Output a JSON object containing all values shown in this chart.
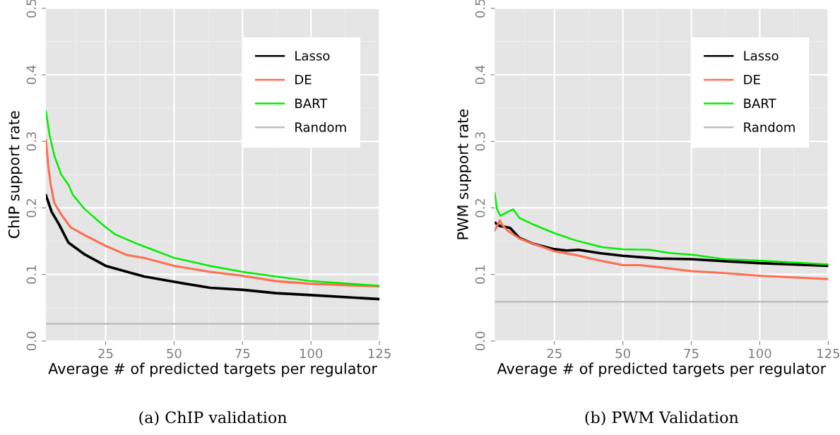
{
  "chart_data": [
    {
      "type": "line",
      "title": "(a) ChIP validation",
      "xlabel": "Average # of predicted targets per regulator",
      "ylabel": "ChIP support rate",
      "xlim": [
        3.2,
        125
      ],
      "xticks": [
        25,
        50,
        75,
        100,
        125
      ],
      "ylim": [
        0,
        0.5
      ],
      "yticks": [
        {
          "value": 0,
          "label": "0.0"
        },
        {
          "value": 0.1,
          "label": "0.1"
        },
        {
          "value": 0.2,
          "label": "0.2"
        },
        {
          "value": 0.3,
          "label": "0.3"
        },
        {
          "value": 0.4,
          "label": "0.4"
        },
        {
          "value": 0.5,
          "label": "0.5"
        }
      ],
      "grid": true,
      "legend": "top right",
      "line_style": "solid",
      "series": [
        {
          "name": "Lasso",
          "color": "#000000",
          "x": [
            3.2,
            5.3,
            7.9,
            11.4,
            17.4,
            25,
            32.9,
            39,
            50,
            63.1,
            75,
            87.2,
            100,
            125
          ],
          "values": [
            0.219,
            0.194,
            0.176,
            0.148,
            0.13,
            0.113,
            0.104,
            0.097,
            0.089,
            0.08,
            0.077,
            0.072,
            0.069,
            0.063
          ]
        },
        {
          "name": "DE",
          "color": "#ff6e50",
          "x": [
            3.2,
            4.1,
            4.9,
            6.2,
            8.8,
            12.2,
            17.4,
            25,
            32.9,
            39,
            50,
            63.1,
            75,
            87.2,
            100,
            125
          ],
          "values": [
            0.302,
            0.261,
            0.236,
            0.208,
            0.19,
            0.171,
            0.159,
            0.143,
            0.129,
            0.125,
            0.113,
            0.104,
            0.098,
            0.09,
            0.086,
            0.082
          ]
        },
        {
          "name": "BART",
          "color": "#00ee00",
          "x": [
            3.2,
            4.5,
            6.2,
            8.8,
            11.4,
            13.1,
            17.4,
            25,
            28.6,
            37.2,
            50,
            63.1,
            75,
            87.2,
            100,
            125
          ],
          "values": [
            0.345,
            0.31,
            0.279,
            0.25,
            0.235,
            0.219,
            0.198,
            0.171,
            0.16,
            0.145,
            0.125,
            0.113,
            0.104,
            0.097,
            0.09,
            0.083
          ]
        },
        {
          "name": "Random",
          "color": "#bebebe",
          "x": [
            3.2,
            125
          ],
          "values": [
            0.026,
            0.026
          ]
        }
      ]
    },
    {
      "type": "line",
      "title": "(b) PWM Validation",
      "xlabel": "Average # of predicted targets per regulator",
      "ylabel": "PWM support rate",
      "xlim": [
        3.2,
        125
      ],
      "xticks": [
        25,
        50,
        75,
        100,
        125
      ],
      "ylim": [
        0,
        0.5
      ],
      "yticks": [
        {
          "value": 0,
          "label": "0.0"
        },
        {
          "value": 0.1,
          "label": "0.1"
        },
        {
          "value": 0.2,
          "label": "0.2"
        },
        {
          "value": 0.3,
          "label": "0.3"
        },
        {
          "value": 0.4,
          "label": "0.4"
        },
        {
          "value": 0.5,
          "label": "0.5"
        }
      ],
      "grid": true,
      "legend": "top right",
      "line_style": "solid",
      "series": [
        {
          "name": "Lasso",
          "color": "#000000",
          "x": [
            3.2,
            5,
            8.8,
            12.2,
            17.4,
            25,
            29.5,
            33.8,
            41.6,
            50,
            63.1,
            75,
            87.2,
            100,
            125
          ],
          "values": [
            0.178,
            0.173,
            0.17,
            0.155,
            0.146,
            0.138,
            0.136,
            0.137,
            0.132,
            0.128,
            0.124,
            0.123,
            0.12,
            0.117,
            0.113
          ]
        },
        {
          "name": "DE",
          "color": "#ff6e50",
          "x": [
            3.2,
            5,
            6.2,
            7.9,
            12.2,
            17.4,
            25,
            32.9,
            41.6,
            50,
            56.2,
            63.1,
            75,
            87.2,
            100,
            125
          ],
          "values": [
            0.166,
            0.181,
            0.173,
            0.166,
            0.154,
            0.146,
            0.135,
            0.129,
            0.121,
            0.114,
            0.114,
            0.111,
            0.105,
            0.102,
            0.098,
            0.093
          ]
        },
        {
          "name": "BART",
          "color": "#00ee00",
          "x": [
            3.2,
            4,
            5.3,
            7.9,
            9.9,
            12.2,
            17.4,
            25,
            32.9,
            42.4,
            50,
            59.7,
            67.4,
            75,
            87.2,
            100,
            125
          ],
          "values": [
            0.222,
            0.198,
            0.188,
            0.194,
            0.198,
            0.185,
            0.175,
            0.162,
            0.151,
            0.141,
            0.138,
            0.137,
            0.132,
            0.13,
            0.123,
            0.121,
            0.115
          ]
        },
        {
          "name": "Random",
          "color": "#bebebe",
          "x": [
            3.2,
            125
          ],
          "values": [
            0.059,
            0.059
          ]
        }
      ]
    }
  ]
}
